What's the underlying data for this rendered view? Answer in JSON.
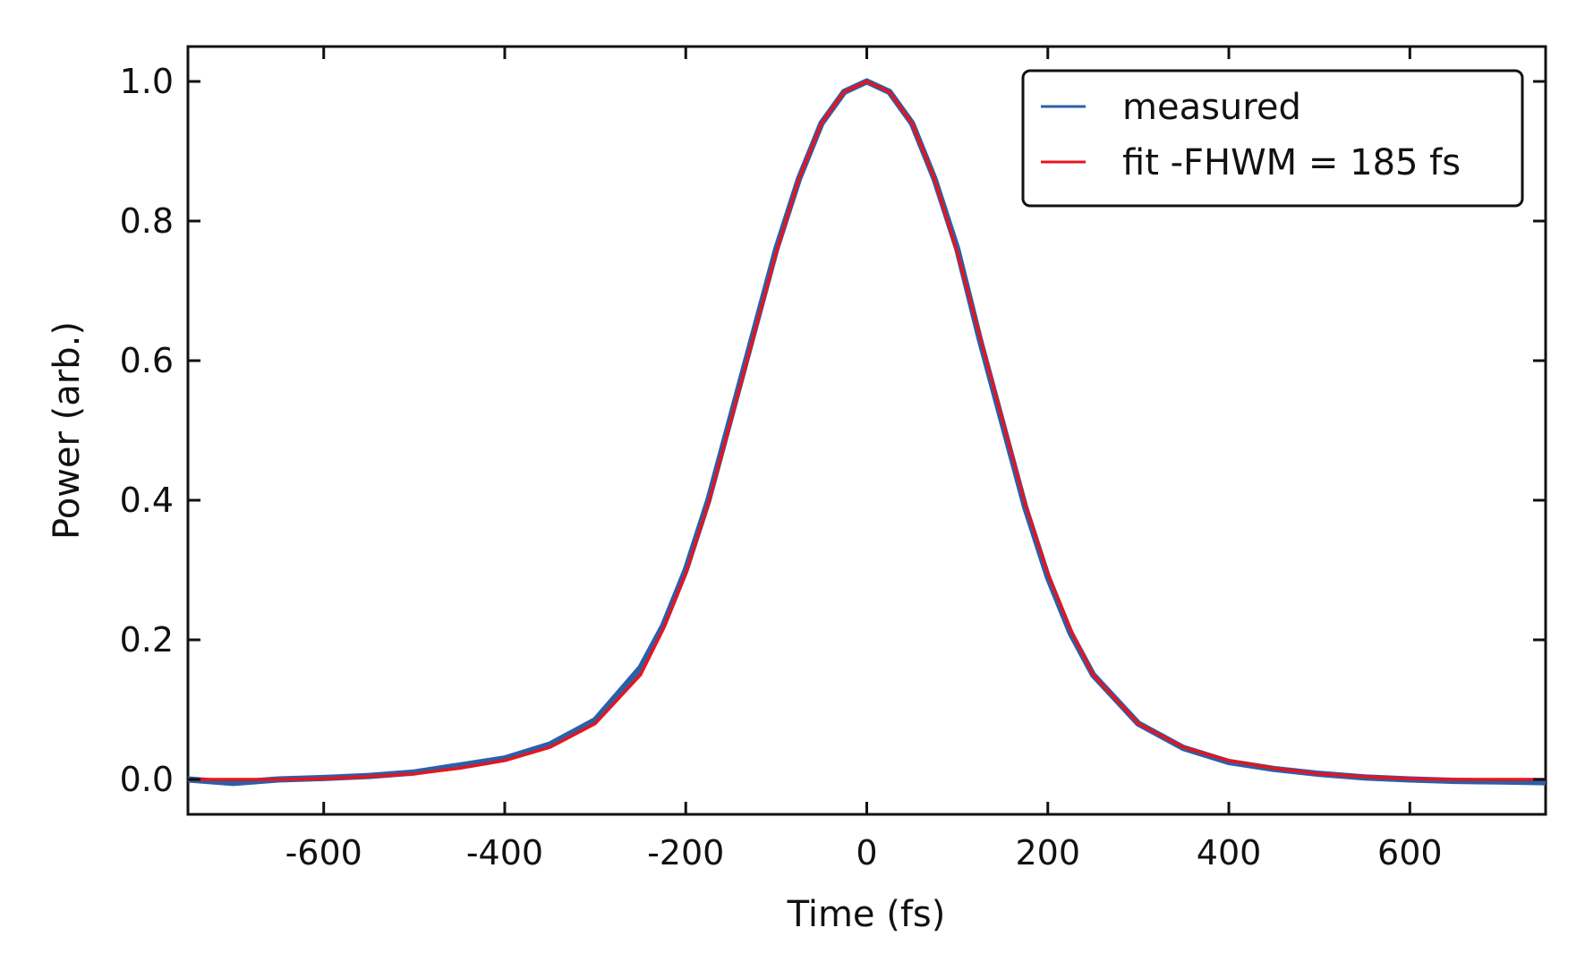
{
  "chart_data": {
    "type": "line",
    "title": "",
    "xlabel": "Time (fs)",
    "ylabel": "Power (arb.)",
    "xlim": [
      -750,
      750
    ],
    "ylim": [
      -0.05,
      1.05
    ],
    "xticks": [
      -600,
      -400,
      -200,
      0,
      200,
      400,
      600
    ],
    "xtick_labels": [
      "-600",
      "-400",
      "-200",
      "0",
      "200",
      "400",
      "600"
    ],
    "yticks": [
      0.0,
      0.2,
      0.4,
      0.6,
      0.8,
      1.0
    ],
    "ytick_labels": [
      "0.0",
      "0.2",
      "0.4",
      "0.6",
      "0.8",
      "1.0"
    ],
    "grid": false,
    "legend_position": "top-right",
    "series": [
      {
        "name": "measured",
        "color": "#2b5fa8",
        "x": [
          -750,
          -700,
          -650,
          -600,
          -550,
          -500,
          -450,
          -400,
          -350,
          -300,
          -250,
          -225,
          -200,
          -175,
          -150,
          -125,
          -100,
          -75,
          -50,
          -25,
          0,
          25,
          50,
          75,
          100,
          125,
          150,
          175,
          200,
          225,
          250,
          300,
          350,
          400,
          450,
          500,
          550,
          600,
          650,
          700,
          750
        ],
        "y": [
          0.0,
          -0.005,
          0.0,
          0.002,
          0.005,
          0.01,
          0.02,
          0.03,
          0.05,
          0.085,
          0.16,
          0.22,
          0.3,
          0.4,
          0.52,
          0.64,
          0.76,
          0.86,
          0.94,
          0.985,
          1.0,
          0.985,
          0.94,
          0.86,
          0.76,
          0.63,
          0.51,
          0.39,
          0.29,
          0.21,
          0.15,
          0.08,
          0.045,
          0.025,
          0.015,
          0.008,
          0.003,
          0.0,
          -0.002,
          -0.003,
          -0.004
        ]
      },
      {
        "name": "fit -FHWM = 185 fs",
        "color": "#e8141c",
        "x": [
          -750,
          -700,
          -650,
          -600,
          -550,
          -500,
          -450,
          -400,
          -350,
          -300,
          -250,
          -225,
          -200,
          -175,
          -150,
          -125,
          -100,
          -75,
          -50,
          -25,
          0,
          25,
          50,
          75,
          100,
          125,
          150,
          175,
          200,
          225,
          250,
          300,
          350,
          400,
          450,
          500,
          550,
          600,
          650,
          700,
          750
        ],
        "y": [
          0.0,
          0.0,
          0.0,
          0.001,
          0.004,
          0.008,
          0.016,
          0.027,
          0.046,
          0.08,
          0.15,
          0.215,
          0.295,
          0.395,
          0.515,
          0.635,
          0.755,
          0.86,
          0.94,
          0.985,
          1.0,
          0.985,
          0.94,
          0.86,
          0.755,
          0.635,
          0.515,
          0.395,
          0.295,
          0.215,
          0.15,
          0.08,
          0.046,
          0.027,
          0.016,
          0.008,
          0.004,
          0.001,
          0.0,
          0.0,
          0.0
        ]
      }
    ]
  }
}
